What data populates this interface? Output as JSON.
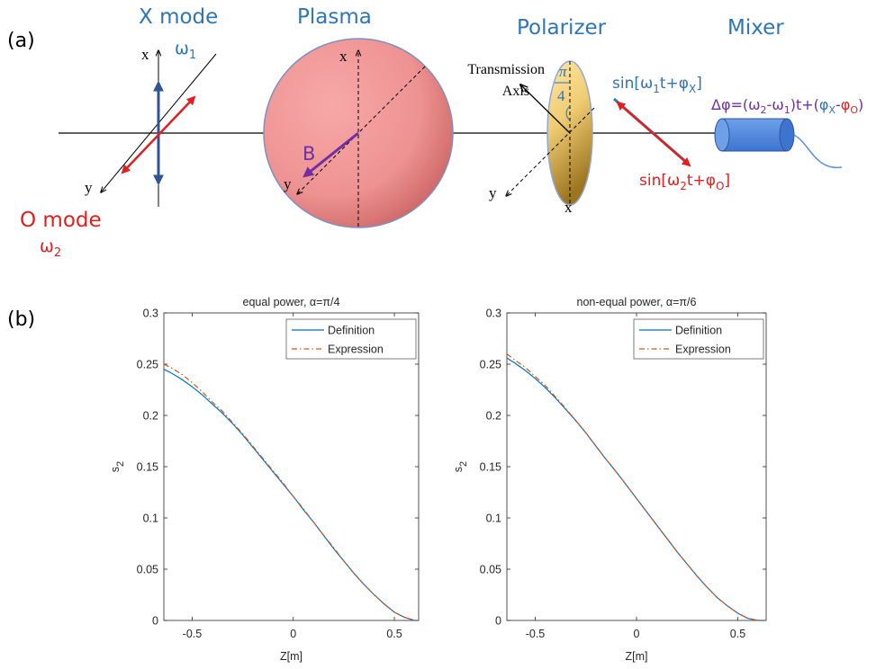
{
  "panel_labels": [
    "(a)",
    "(b)"
  ],
  "diagram": {
    "x_mode": "X mode",
    "plasma": "Plasma",
    "polarizer": "Polarizer",
    "mixer": "Mixer",
    "o_mode": "O mode",
    "omega1": [
      "ω",
      "1"
    ],
    "omega2": [
      "ω",
      "2"
    ],
    "axis_x": [
      "x",
      "x",
      "x"
    ],
    "axis_y": [
      "y",
      "y",
      "y"
    ],
    "transmission_axis": [
      "Transmission",
      "Axis"
    ],
    "angle": [
      "π",
      "4"
    ],
    "b_field": "B",
    "sin_x": [
      "sin[ω",
      "1",
      "t+φ",
      "X",
      "]"
    ],
    "sin_o": [
      "sin[ω",
      "2",
      "t+φ",
      "O",
      "]"
    ],
    "delta_phi": [
      "Δφ=(ω",
      "2",
      "-ω",
      "1",
      ")t+(",
      "φ",
      "X",
      "-",
      "φ",
      "O",
      ")"
    ]
  },
  "chart_data": [
    {
      "type": "line",
      "title": "equal power, α=π/4",
      "xlabel": "Z[m]",
      "ylabel": [
        "s",
        "2"
      ],
      "x": [
        -0.64,
        -0.6,
        -0.55,
        -0.5,
        -0.45,
        -0.4,
        -0.35,
        -0.3,
        -0.25,
        -0.2,
        -0.15,
        -0.1,
        -0.05,
        0,
        0.05,
        0.1,
        0.15,
        0.2,
        0.25,
        0.3,
        0.35,
        0.4,
        0.45,
        0.5,
        0.55,
        0.6,
        0.62
      ],
      "series": [
        {
          "name": "Definition",
          "color": "#0072bd",
          "dash": "solid",
          "values": [
            0.245,
            0.241,
            0.235,
            0.228,
            0.22,
            0.211,
            0.202,
            0.192,
            0.181,
            0.169,
            0.157,
            0.145,
            0.133,
            0.121,
            0.108,
            0.096,
            0.083,
            0.07,
            0.058,
            0.046,
            0.035,
            0.025,
            0.016,
            0.008,
            0.003,
            0,
            0
          ]
        },
        {
          "name": "Expression",
          "color": "#d95319",
          "dash": "dashdot",
          "values": [
            0.25,
            0.246,
            0.24,
            0.232,
            0.223,
            0.213,
            0.204,
            0.193,
            0.182,
            0.17,
            0.158,
            0.146,
            0.134,
            0.121,
            0.109,
            0.096,
            0.083,
            0.071,
            0.058,
            0.046,
            0.035,
            0.025,
            0.016,
            0.008,
            0.003,
            0,
            0
          ]
        }
      ],
      "xlim": [
        -0.64,
        0.62
      ],
      "ylim": [
        0,
        0.3
      ],
      "xticks": [
        -0.5,
        0,
        0.5
      ],
      "yticks": [
        0,
        0.05,
        0.1,
        0.15,
        0.2,
        0.25,
        0.3
      ],
      "legend": "upper right"
    },
    {
      "type": "line",
      "title": "non-equal power, α=π/6",
      "xlabel": "Z[m]",
      "ylabel": [
        "s",
        "2"
      ],
      "x": [
        -0.64,
        -0.6,
        -0.55,
        -0.5,
        -0.45,
        -0.4,
        -0.35,
        -0.3,
        -0.25,
        -0.2,
        -0.15,
        -0.1,
        -0.05,
        0,
        0.05,
        0.1,
        0.15,
        0.2,
        0.25,
        0.3,
        0.35,
        0.4,
        0.45,
        0.5,
        0.55,
        0.6,
        0.64
      ],
      "series": [
        {
          "name": "Definition",
          "color": "#0072bd",
          "dash": "solid",
          "values": [
            0.256,
            0.251,
            0.244,
            0.236,
            0.227,
            0.217,
            0.206,
            0.195,
            0.183,
            0.17,
            0.157,
            0.145,
            0.132,
            0.119,
            0.106,
            0.093,
            0.08,
            0.067,
            0.055,
            0.043,
            0.032,
            0.022,
            0.014,
            0.007,
            0.002,
            0,
            0
          ]
        },
        {
          "name": "Expression",
          "color": "#d95319",
          "dash": "dashdot",
          "values": [
            0.26,
            0.254,
            0.247,
            0.238,
            0.229,
            0.218,
            0.207,
            0.195,
            0.183,
            0.17,
            0.157,
            0.145,
            0.132,
            0.119,
            0.106,
            0.093,
            0.08,
            0.067,
            0.055,
            0.043,
            0.032,
            0.022,
            0.014,
            0.007,
            0.002,
            0,
            0
          ]
        }
      ],
      "xlim": [
        -0.64,
        0.64
      ],
      "ylim": [
        0,
        0.3
      ],
      "xticks": [
        -0.5,
        0,
        0.5
      ],
      "yticks": [
        0,
        0.05,
        0.1,
        0.15,
        0.2,
        0.25,
        0.3
      ],
      "legend": "upper right"
    }
  ]
}
